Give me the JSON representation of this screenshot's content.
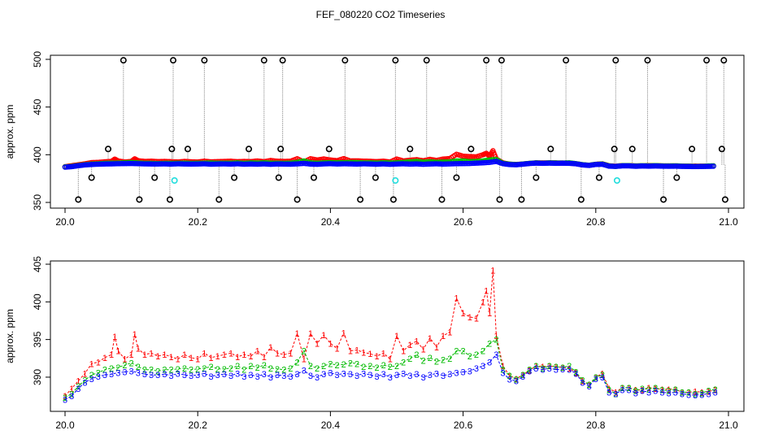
{
  "title": "FEF_080220  CO2 Timeseries",
  "colors": {
    "black": "#000000",
    "red": "#ff0000",
    "green": "#00bb00",
    "blue": "#0000ff",
    "cyan": "#22dddd",
    "connector": "#9a9a9a"
  },
  "chart_data": [
    {
      "type": "scatter",
      "title": "FEF_080220  CO2 Timeseries",
      "xlabel": "",
      "ylabel": "approx. ppm",
      "xlim": [
        20.0,
        21.0
      ],
      "ylim": [
        350,
        500
      ],
      "x_ticks": [
        "20.0",
        "20.2",
        "20.4",
        "20.6",
        "20.8",
        "21.0"
      ],
      "y_ticks": [
        "350",
        "400",
        "450",
        "500"
      ],
      "grid": false,
      "series": [
        {
          "color": "black",
          "marker": "circle",
          "x": [
            20.02,
            20.04,
            20.065,
            20.088,
            20.112,
            20.135,
            20.158,
            20.161,
            20.163,
            20.185,
            20.21,
            20.232,
            20.255,
            20.277,
            20.3,
            20.322,
            20.325,
            20.328,
            20.35,
            20.375,
            20.398,
            20.422,
            20.445,
            20.468,
            20.495,
            20.498,
            20.52,
            20.545,
            20.568,
            20.59,
            20.612,
            20.635,
            20.655,
            20.658,
            20.688,
            20.71,
            20.732,
            20.755,
            20.778,
            20.805,
            20.828,
            20.83,
            20.855,
            20.878,
            20.902,
            20.922,
            20.945,
            20.967,
            20.99,
            20.993,
            20.995
          ],
          "y": [
            353,
            376,
            406,
            499,
            353,
            376,
            353,
            406,
            499,
            406,
            499,
            353,
            376,
            406,
            499,
            376,
            406,
            499,
            353,
            376,
            406,
            499,
            353,
            376,
            353,
            499,
            406,
            499,
            353,
            376,
            406,
            499,
            353,
            499,
            353,
            376,
            406,
            499,
            353,
            376,
            406,
            499,
            406,
            499,
            353,
            376,
            406,
            499,
            406,
            499,
            353
          ]
        },
        {
          "color": "cyan",
          "marker": "circle",
          "x": [
            20.165,
            20.498,
            20.832
          ],
          "y": [
            373,
            373,
            373
          ]
        }
      ]
    },
    {
      "type": "line",
      "title": "",
      "xlabel": "",
      "ylabel": "approx. ppm",
      "xlim": [
        20.0,
        21.0
      ],
      "ylim": [
        386,
        405
      ],
      "x_ticks": [
        "20.0",
        "20.2",
        "20.4",
        "20.6",
        "20.8",
        "21.0"
      ],
      "y_ticks": [
        "390",
        "395",
        "400",
        "405"
      ],
      "grid": false,
      "series": [
        {
          "color": "red",
          "marker": "1",
          "x": [
            20.0,
            20.01,
            20.02,
            20.03,
            20.04,
            20.05,
            20.06,
            20.07,
            20.075,
            20.08,
            20.09,
            20.1,
            20.105,
            20.11,
            20.12,
            20.13,
            20.14,
            20.15,
            20.16,
            20.17,
            20.18,
            20.19,
            20.2,
            20.21,
            20.22,
            20.23,
            20.24,
            20.25,
            20.26,
            20.27,
            20.28,
            20.29,
            20.3,
            20.31,
            20.32,
            20.33,
            20.34,
            20.35,
            20.36,
            20.37,
            20.38,
            20.39,
            20.4,
            20.41,
            20.42,
            20.43,
            20.44,
            20.45,
            20.46,
            20.47,
            20.48,
            20.49,
            20.5,
            20.51,
            20.52,
            20.53,
            20.54,
            20.55,
            20.56,
            20.57,
            20.58,
            20.59,
            20.6,
            20.61,
            20.62,
            20.63,
            20.635,
            20.64,
            20.645,
            20.65,
            20.66,
            20.67,
            20.68,
            20.69,
            20.7,
            20.71,
            20.72,
            20.73,
            20.74,
            20.75,
            20.76,
            20.77,
            20.78,
            20.79,
            20.8,
            20.81,
            20.82,
            20.83,
            20.84,
            20.85,
            20.86,
            20.87,
            20.88,
            20.89,
            20.9,
            20.91,
            20.92,
            20.93,
            20.94,
            20.95,
            20.96,
            20.97,
            20.98
          ],
          "y": [
            387.5,
            388.5,
            389.5,
            390.5,
            391.8,
            392.0,
            392.6,
            393.0,
            395.4,
            393.5,
            392.4,
            393.0,
            395.7,
            393.8,
            393.0,
            393.2,
            392.8,
            393.0,
            392.7,
            392.4,
            393.0,
            392.6,
            392.4,
            393.2,
            392.6,
            392.8,
            393.0,
            393.2,
            392.7,
            393.0,
            392.8,
            393.5,
            392.7,
            394.0,
            393.2,
            393.0,
            393.2,
            395.8,
            392.4,
            395.8,
            394.5,
            395.6,
            394.5,
            393.8,
            395.9,
            393.5,
            393.6,
            393.3,
            393.1,
            392.8,
            393.2,
            392.4,
            395.5,
            393.5,
            394.3,
            394.8,
            393.7,
            395.2,
            394.0,
            395.5,
            396.0,
            400.5,
            398.5,
            398.0,
            397.8,
            400.0,
            401.5,
            398.5,
            404.2,
            395.5,
            391.5,
            390.2,
            389.8,
            390.3,
            390.9,
            391.5,
            391.4,
            391.5,
            391.4,
            391.3,
            391.2,
            390.6,
            389.5,
            389.0,
            390.0,
            390.5,
            388.5,
            388.0,
            388.6,
            388.6,
            388.3,
            388.3,
            388.6,
            388.5,
            388.4,
            388.4,
            388.4,
            388.0,
            388.0,
            388.1,
            388.0,
            388.1,
            388.3
          ]
        },
        {
          "color": "green",
          "marker": "2",
          "x": [
            20.0,
            20.01,
            20.02,
            20.03,
            20.04,
            20.05,
            20.06,
            20.07,
            20.08,
            20.09,
            20.1,
            20.11,
            20.12,
            20.13,
            20.14,
            20.15,
            20.16,
            20.17,
            20.18,
            20.19,
            20.2,
            20.21,
            20.22,
            20.23,
            20.24,
            20.25,
            20.26,
            20.27,
            20.28,
            20.29,
            20.3,
            20.31,
            20.32,
            20.33,
            20.34,
            20.35,
            20.36,
            20.37,
            20.38,
            20.39,
            20.4,
            20.41,
            20.42,
            20.43,
            20.44,
            20.45,
            20.46,
            20.47,
            20.48,
            20.49,
            20.5,
            20.51,
            20.52,
            20.53,
            20.54,
            20.55,
            20.56,
            20.57,
            20.58,
            20.59,
            20.6,
            20.61,
            20.62,
            20.63,
            20.64,
            20.65,
            20.66,
            20.67,
            20.68,
            20.69,
            20.7,
            20.71,
            20.72,
            20.73,
            20.74,
            20.75,
            20.76,
            20.77,
            20.78,
            20.79,
            20.8,
            20.81,
            20.82,
            20.83,
            20.84,
            20.85,
            20.86,
            20.87,
            20.88,
            20.89,
            20.9,
            20.91,
            20.92,
            20.93,
            20.94,
            20.95,
            20.96,
            20.97,
            20.98
          ],
          "y": [
            387.3,
            387.8,
            388.8,
            389.6,
            390.3,
            390.6,
            391.0,
            391.2,
            391.3,
            391.6,
            391.9,
            391.4,
            391.0,
            391.0,
            390.8,
            391.0,
            391.0,
            391.1,
            391.2,
            391.0,
            391.1,
            391.2,
            391.4,
            391.1,
            391.1,
            391.2,
            391.5,
            391.0,
            391.5,
            391.3,
            391.6,
            391.2,
            391.1,
            391.0,
            391.2,
            392.0,
            393.5,
            391.5,
            391.2,
            391.5,
            391.8,
            391.6,
            391.7,
            391.9,
            391.8,
            391.4,
            391.5,
            391.3,
            391.6,
            391.4,
            391.5,
            392.0,
            392.5,
            393.0,
            392.2,
            392.6,
            392.1,
            392.3,
            392.5,
            393.5,
            393.5,
            392.8,
            393.0,
            393.5,
            394.5,
            395.0,
            391.0,
            390.2,
            389.7,
            390.3,
            391.0,
            391.5,
            391.2,
            391.5,
            391.4,
            391.3,
            391.5,
            390.7,
            389.6,
            389.0,
            390.0,
            390.3,
            388.3,
            387.8,
            388.6,
            388.6,
            388.2,
            388.5,
            388.4,
            388.6,
            388.3,
            388.2,
            388.4,
            388.0,
            388.0,
            387.8,
            387.9,
            388.2,
            388.4
          ]
        },
        {
          "color": "blue",
          "marker": "3",
          "x": [
            20.0,
            20.01,
            20.02,
            20.03,
            20.04,
            20.05,
            20.06,
            20.07,
            20.08,
            20.09,
            20.1,
            20.11,
            20.12,
            20.13,
            20.14,
            20.15,
            20.16,
            20.17,
            20.18,
            20.19,
            20.2,
            20.21,
            20.22,
            20.23,
            20.24,
            20.25,
            20.26,
            20.27,
            20.28,
            20.29,
            20.3,
            20.31,
            20.32,
            20.33,
            20.34,
            20.35,
            20.36,
            20.37,
            20.38,
            20.39,
            20.4,
            20.41,
            20.42,
            20.43,
            20.44,
            20.45,
            20.46,
            20.47,
            20.48,
            20.49,
            20.5,
            20.51,
            20.52,
            20.53,
            20.54,
            20.55,
            20.56,
            20.57,
            20.58,
            20.59,
            20.6,
            20.61,
            20.62,
            20.63,
            20.64,
            20.65,
            20.66,
            20.67,
            20.68,
            20.69,
            20.7,
            20.71,
            20.72,
            20.73,
            20.74,
            20.75,
            20.76,
            20.77,
            20.78,
            20.79,
            20.8,
            20.81,
            20.82,
            20.83,
            20.84,
            20.85,
            20.86,
            20.87,
            20.88,
            20.89,
            20.9,
            20.91,
            20.92,
            20.93,
            20.94,
            20.95,
            20.96,
            20.97,
            20.98
          ],
          "y": [
            387.0,
            387.5,
            388.5,
            389.3,
            389.8,
            390.1,
            390.3,
            390.4,
            390.6,
            390.7,
            390.8,
            390.6,
            390.4,
            390.3,
            390.3,
            390.4,
            390.2,
            390.5,
            390.3,
            390.2,
            390.3,
            390.5,
            390.1,
            390.3,
            390.4,
            390.2,
            390.5,
            390.1,
            390.3,
            390.1,
            390.4,
            390.0,
            390.3,
            390.2,
            390.1,
            390.4,
            390.9,
            390.2,
            390.0,
            390.4,
            390.6,
            390.3,
            390.5,
            390.4,
            390.2,
            390.5,
            390.3,
            390.1,
            390.4,
            390.0,
            390.3,
            390.5,
            390.2,
            390.4,
            390.0,
            390.3,
            390.5,
            390.2,
            390.4,
            390.6,
            390.7,
            390.8,
            391.2,
            391.5,
            392.0,
            393.0,
            390.6,
            389.7,
            389.5,
            390.1,
            390.8,
            391.2,
            391.0,
            391.2,
            391.0,
            391.1,
            391.0,
            390.5,
            389.3,
            388.8,
            389.8,
            390.0,
            388.0,
            387.8,
            388.3,
            388.3,
            387.9,
            388.2,
            388.0,
            388.2,
            388.0,
            387.9,
            388.0,
            387.8,
            387.7,
            387.6,
            387.7,
            387.8,
            388.0
          ]
        }
      ]
    }
  ]
}
